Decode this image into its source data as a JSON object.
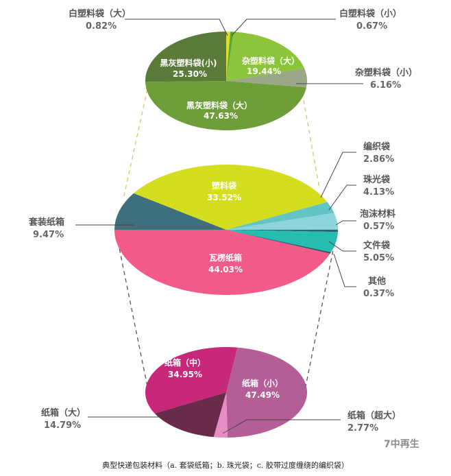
{
  "chart_data": [
    {
      "type": "pie",
      "categories": [
        "白塑料袋（大）",
        "白塑料袋（小）",
        "杂塑料袋（大）",
        "杂塑料袋（小）",
        "黑灰塑料袋（大）",
        "黑灰塑料袋(小)"
      ],
      "values": [
        0.82,
        0.67,
        19.44,
        6.16,
        47.63,
        25.3
      ],
      "labels": [
        "0.82%",
        "0.67%",
        "19.44%",
        "6.16%",
        "47.63%",
        "25.30%"
      ],
      "colors": [
        "#dede2a",
        "#5aa832",
        "#8cc43c",
        "#9aa888",
        "#6e9e3a",
        "#5a7a3a"
      ]
    },
    {
      "type": "pie",
      "categories": [
        "套装纸箱",
        "塑料袋",
        "编织袋",
        "珠光袋",
        "泡沫材料",
        "文件袋",
        "其他",
        "瓦楞纸箱"
      ],
      "values": [
        9.47,
        33.52,
        2.86,
        4.13,
        0.57,
        5.05,
        0.37,
        44.03
      ],
      "labels": [
        "9.47%",
        "33.52%",
        "2.86%",
        "4.13%",
        "0.57%",
        "5.05%",
        "0.37%",
        "44.03%"
      ],
      "colors": [
        "#3e6f7c",
        "#d4de1e",
        "#62c4c4",
        "#8ed4dc",
        "#2a6670",
        "#25bdb0",
        "#2c5566",
        "#f25a88"
      ]
    },
    {
      "type": "pie",
      "categories": [
        "纸箱（小）",
        "纸箱（超大）",
        "纸箱（大）",
        "纸箱（中）"
      ],
      "values": [
        47.49,
        2.77,
        14.79,
        34.95
      ],
      "labels": [
        "47.49%",
        "2.77%",
        "14.79%",
        "34.95%"
      ],
      "colors": [
        "#b45e98",
        "#e88cc4",
        "#6a2a4a",
        "#c8287a"
      ]
    }
  ],
  "caption": "典型快递包装材料（a. 套袋纸箱；b. 珠光袋；c. 胶带过度缠绕的编织袋）",
  "watermark": "7中再生"
}
